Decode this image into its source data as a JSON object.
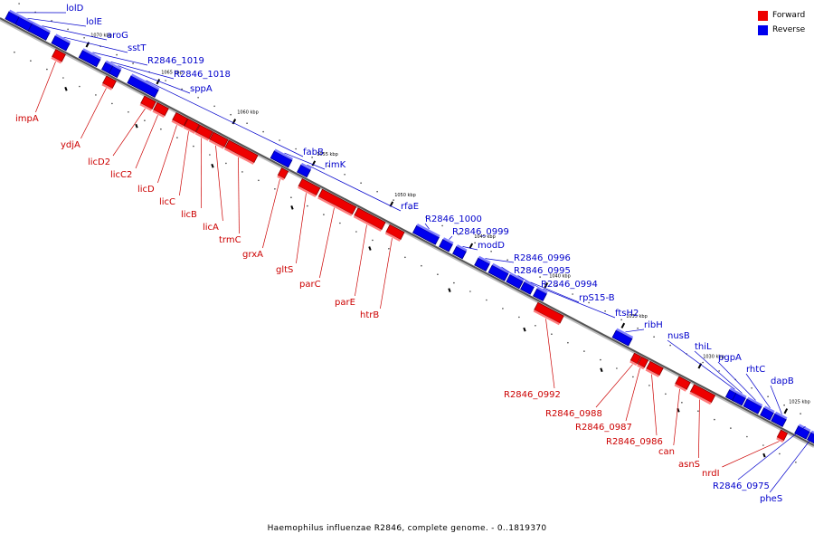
{
  "legend": {
    "forward_label": "Forward",
    "reverse_label": "Reverse",
    "forward_color": "#ee0000",
    "reverse_color": "#0000ee"
  },
  "caption": "Haemophilus influenzae R2846, complete genome. - 0..1819370",
  "genome": {
    "kbp_ticks": [
      "1070 kbp",
      "1065 kbp",
      "1060 kbp",
      "1055 kbp",
      "1050 kbp",
      "1045 kbp",
      "1040 kbp",
      "1035 kbp",
      "1030 kbp",
      "1025 kbp"
    ],
    "reverse_genes": [
      "lolD",
      "lolE",
      "aroG",
      "sstT",
      "R2846_1019",
      "R2846_1018",
      "sppA",
      "fabB",
      "rimK",
      "rfaE",
      "R2846_1000",
      "R2846_0999",
      "modD",
      "R2846_0996",
      "R2846_0995",
      "R2846_0994",
      "rpS15-B",
      "ftsH2",
      "ribH",
      "nusB",
      "thiL",
      "pgpA",
      "rhtC",
      "dapB",
      "R2846_0975",
      "pheS"
    ],
    "forward_genes": [
      "impA",
      "ydjA",
      "licD2",
      "licC2",
      "licD",
      "licC",
      "licB",
      "licA",
      "trmC",
      "grxA",
      "gltS",
      "parC",
      "parE",
      "htrB",
      "R2846_0992",
      "R2846_0988",
      "R2846_0987",
      "R2846_0986",
      "can",
      "asnS",
      "nrdI"
    ]
  }
}
